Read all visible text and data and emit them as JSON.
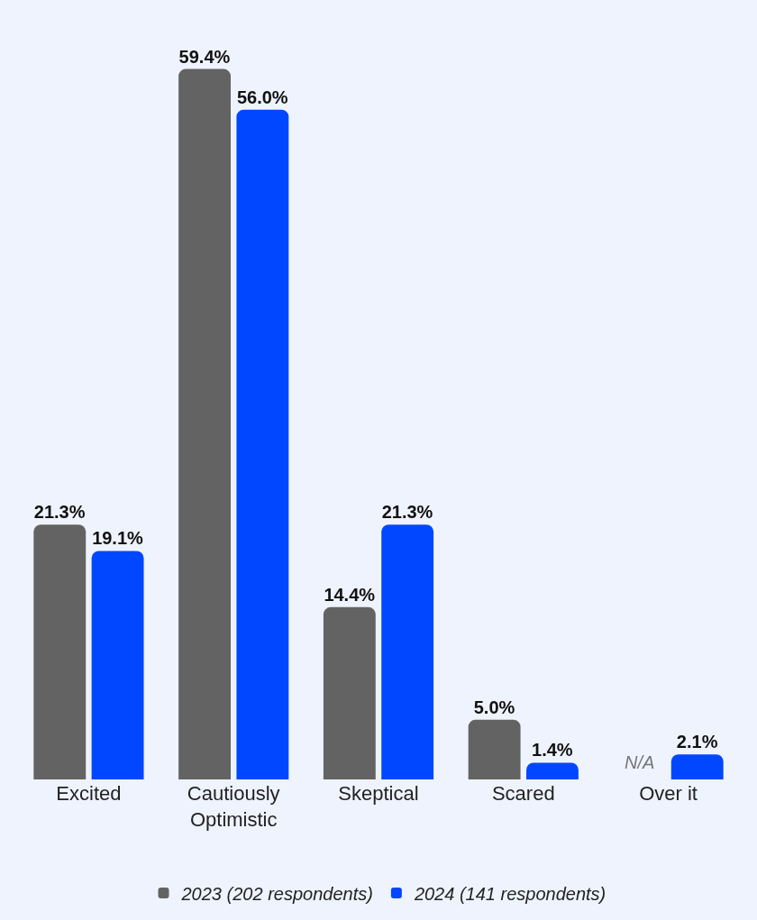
{
  "chart_data": {
    "type": "bar",
    "categories": [
      "Excited",
      "Cautiously Optimistic",
      "Skeptical",
      "Scared",
      "Over it"
    ],
    "series": [
      {
        "name": "2023 (202 respondents)",
        "color": "#636363",
        "values": [
          21.3,
          59.4,
          14.4,
          5.0,
          null
        ],
        "value_labels": [
          "21.3%",
          "59.4%",
          "14.4%",
          "5.0%",
          "N/A"
        ]
      },
      {
        "name": "2024 (141 respondents)",
        "color": "#0047ff",
        "values": [
          19.1,
          56.0,
          21.3,
          1.4,
          2.1
        ],
        "value_labels": [
          "19.1%",
          "56.0%",
          "21.3%",
          "1.4%",
          "2.1%"
        ]
      }
    ],
    "legend": "bottom",
    "grid": false
  }
}
